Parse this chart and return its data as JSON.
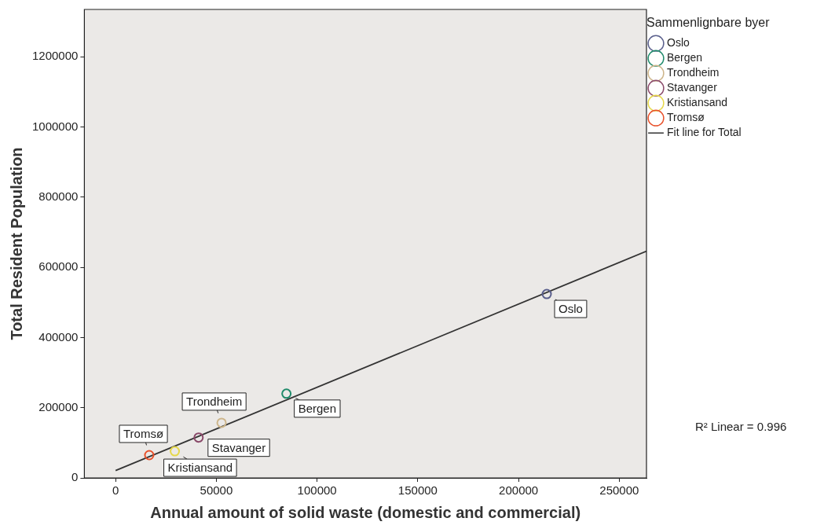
{
  "chart_data": {
    "type": "scatter",
    "xlabel": "Annual amount of solid waste (domestic and commercial)",
    "ylabel": "Total Resident Population",
    "legend_title": "Sammenlignbare byer",
    "legend": "top right",
    "marker": "circle",
    "grid": false,
    "xlim": [
      -15500,
      263500
    ],
    "xticks": [
      0,
      50000,
      100000,
      150000,
      200000,
      250000
    ],
    "ylim": [
      0,
      1335000
    ],
    "yticks": [
      0,
      200000,
      400000,
      600000,
      800000,
      1000000,
      1200000
    ],
    "series": [
      {
        "name": "Oslo",
        "color": "#5a5f8c",
        "x": [
          214000
        ],
        "values": [
          524000
        ]
      },
      {
        "name": "Bergen",
        "color": "#1f8a6a",
        "x": [
          84800
        ],
        "values": [
          240000
        ]
      },
      {
        "name": "Trondheim",
        "color": "#cdb58a",
        "x": [
          52600
        ],
        "values": [
          157000
        ]
      },
      {
        "name": "Stavanger",
        "color": "#8a4a6a",
        "x": [
          41200
        ],
        "values": [
          115000
        ]
      },
      {
        "name": "Kristiansand",
        "color": "#e6d84a",
        "x": [
          29400
        ],
        "values": [
          76000
        ]
      },
      {
        "name": "Tromsø",
        "color": "#e8502a",
        "x": [
          16700
        ],
        "values": [
          65000
        ]
      },
      {
        "name": "Fit line for Total",
        "type": "line",
        "marker": "none",
        "color": "#333333",
        "x": [
          0,
          263500
        ],
        "values": [
          21000,
          646000
        ]
      }
    ],
    "annotations": [
      {
        "text": "Oslo",
        "x": 214000,
        "y": 524000
      },
      {
        "text": "Bergen",
        "x": 84800,
        "y": 240000
      },
      {
        "text": "Trondheim",
        "x": 52600,
        "y": 157000
      },
      {
        "text": "Stavanger",
        "x": 41200,
        "y": 115000
      },
      {
        "text": "Kristiansand",
        "x": 29400,
        "y": 76000
      },
      {
        "text": "Tromsø",
        "x": 16700,
        "y": 65000
      },
      "R² Linear = 0.996"
    ]
  }
}
